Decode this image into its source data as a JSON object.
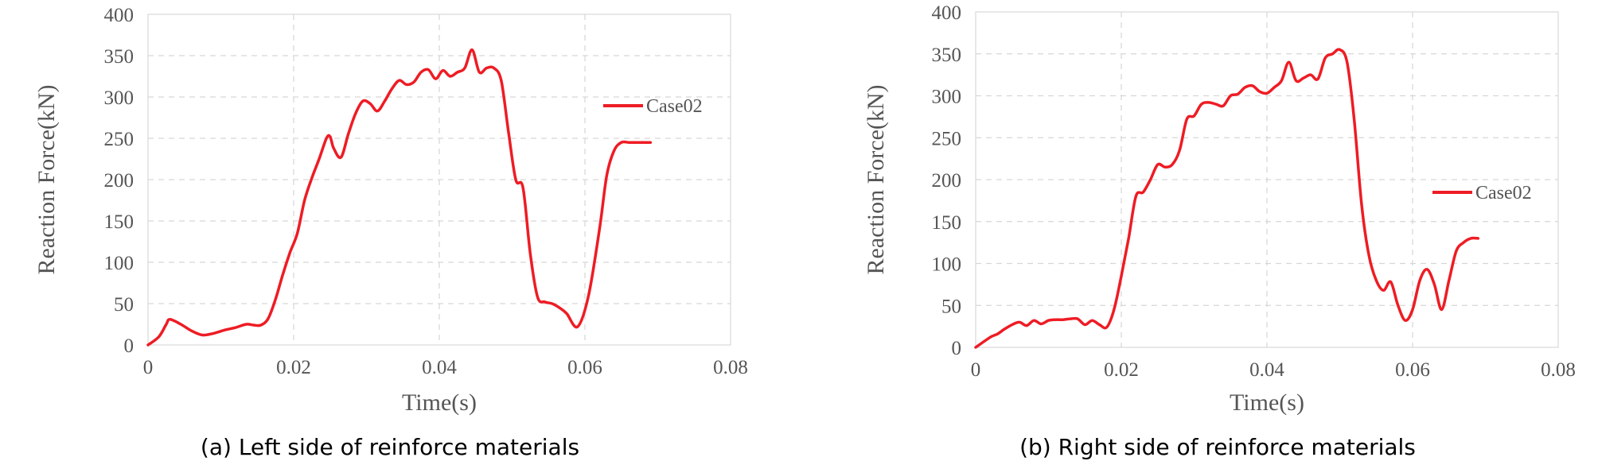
{
  "chart_data": [
    {
      "type": "line",
      "caption": "(a) Left side of reinforce materials",
      "xlabel": "Time(s)",
      "ylabel": "Reaction Force(kN)",
      "xlim": [
        0,
        0.08
      ],
      "ylim": [
        0,
        400
      ],
      "x_ticks": [
        "0",
        "0.02",
        "0.04",
        "0.06",
        "0.08"
      ],
      "y_ticks": [
        "0",
        "50",
        "100",
        "150",
        "200",
        "250",
        "300",
        "350",
        "400"
      ],
      "grid": true,
      "legend_placement": "right",
      "series_color": "#ee1c24",
      "series": [
        {
          "name": "Case02",
          "x": [
            0,
            0.0015,
            0.0025,
            0.003,
            0.0045,
            0.006,
            0.0075,
            0.009,
            0.0105,
            0.012,
            0.0135,
            0.0145,
            0.0155,
            0.0165,
            0.0175,
            0.0185,
            0.0195,
            0.0205,
            0.0215,
            0.0225,
            0.0235,
            0.0245,
            0.025,
            0.0255,
            0.0265,
            0.0275,
            0.0285,
            0.0295,
            0.0305,
            0.0315,
            0.0325,
            0.0335,
            0.0345,
            0.0355,
            0.0365,
            0.0375,
            0.0385,
            0.0395,
            0.0405,
            0.0415,
            0.0425,
            0.0435,
            0.0445,
            0.0455,
            0.0465,
            0.0475,
            0.0485,
            0.0495,
            0.0505,
            0.0515,
            0.0525,
            0.0535,
            0.0545,
            0.0555,
            0.0565,
            0.0575,
            0.059,
            0.0605,
            0.062,
            0.063,
            0.064,
            0.065,
            0.066,
            0.067,
            0.068,
            0.069
          ],
          "values": [
            0,
            10,
            25,
            31,
            25,
            17,
            12,
            14,
            18,
            21,
            25,
            24,
            24,
            32,
            55,
            85,
            112,
            135,
            175,
            202,
            225,
            250,
            252,
            238,
            227,
            255,
            280,
            295,
            292,
            283,
            295,
            310,
            320,
            315,
            318,
            330,
            333,
            322,
            332,
            325,
            330,
            335,
            357,
            330,
            335,
            335,
            320,
            258,
            200,
            190,
            110,
            58,
            52,
            50,
            45,
            38,
            22,
            60,
            140,
            205,
            235,
            245,
            245,
            245,
            245,
            245
          ]
        }
      ]
    },
    {
      "type": "line",
      "caption": "(b) Right side of reinforce materials",
      "xlabel": "Time(s)",
      "ylabel": "Reaction Force(kN)",
      "xlim": [
        0,
        0.08
      ],
      "ylim": [
        0,
        400
      ],
      "x_ticks": [
        "0",
        "0.02",
        "0.04",
        "0.06",
        "0.08"
      ],
      "y_ticks": [
        "0",
        "50",
        "100",
        "150",
        "200",
        "250",
        "300",
        "350",
        "400"
      ],
      "grid": true,
      "legend_placement": "right",
      "series_color": "#ee1c24",
      "series": [
        {
          "name": "Case02",
          "x": [
            0,
            0.002,
            0.003,
            0.004,
            0.005,
            0.006,
            0.007,
            0.008,
            0.009,
            0.01,
            0.011,
            0.012,
            0.013,
            0.014,
            0.015,
            0.016,
            0.017,
            0.018,
            0.019,
            0.02,
            0.021,
            0.022,
            0.023,
            0.024,
            0.025,
            0.026,
            0.027,
            0.028,
            0.029,
            0.03,
            0.031,
            0.032,
            0.033,
            0.034,
            0.035,
            0.036,
            0.037,
            0.038,
            0.039,
            0.04,
            0.041,
            0.042,
            0.043,
            0.044,
            0.045,
            0.046,
            0.047,
            0.048,
            0.049,
            0.05,
            0.051,
            0.052,
            0.053,
            0.054,
            0.055,
            0.056,
            0.057,
            0.058,
            0.059,
            0.06,
            0.061,
            0.062,
            0.063,
            0.064,
            0.065,
            0.066,
            0.067,
            0.068,
            0.069
          ],
          "values": [
            0,
            12,
            16,
            22,
            27,
            30,
            26,
            32,
            28,
            32,
            33,
            33,
            34,
            34,
            27,
            32,
            27,
            24,
            45,
            85,
            130,
            180,
            185,
            200,
            218,
            215,
            218,
            235,
            272,
            276,
            290,
            292,
            290,
            288,
            300,
            302,
            310,
            312,
            305,
            303,
            310,
            318,
            340,
            318,
            321,
            325,
            320,
            345,
            350,
            355,
            340,
            270,
            170,
            110,
            80,
            68,
            78,
            50,
            32,
            45,
            80,
            93,
            75,
            45,
            80,
            115,
            125,
            130,
            130
          ]
        }
      ]
    }
  ]
}
